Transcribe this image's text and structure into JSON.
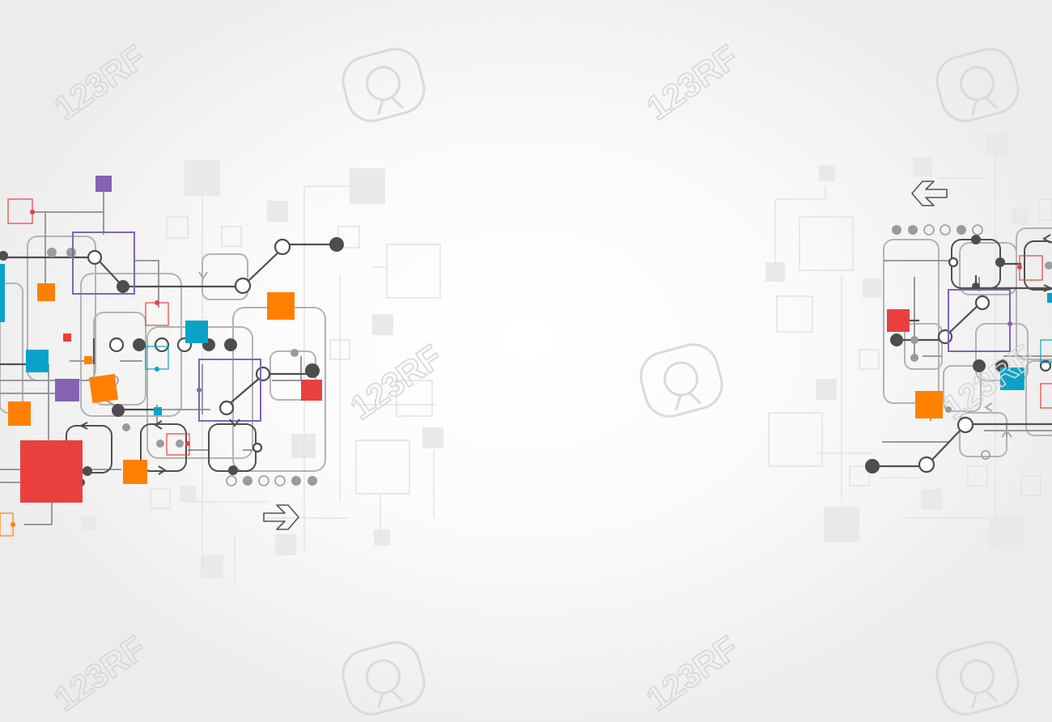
{
  "watermark": {
    "text": "123RF",
    "stroke_color": "#d9d9d9"
  },
  "palette": {
    "orange": "#ff8000",
    "red": "#ea3f3f",
    "blue": "#0aa3c8",
    "purple": "#8563b3",
    "line_dark": "#555555",
    "line_grey": "#a9a9a9",
    "faint": "#e6e6e6"
  },
  "icons": {
    "arrow_left": "double-chevron-left-icon",
    "arrow_right": "double-chevron-right-icon",
    "logo": "123rf-logo-icon"
  }
}
